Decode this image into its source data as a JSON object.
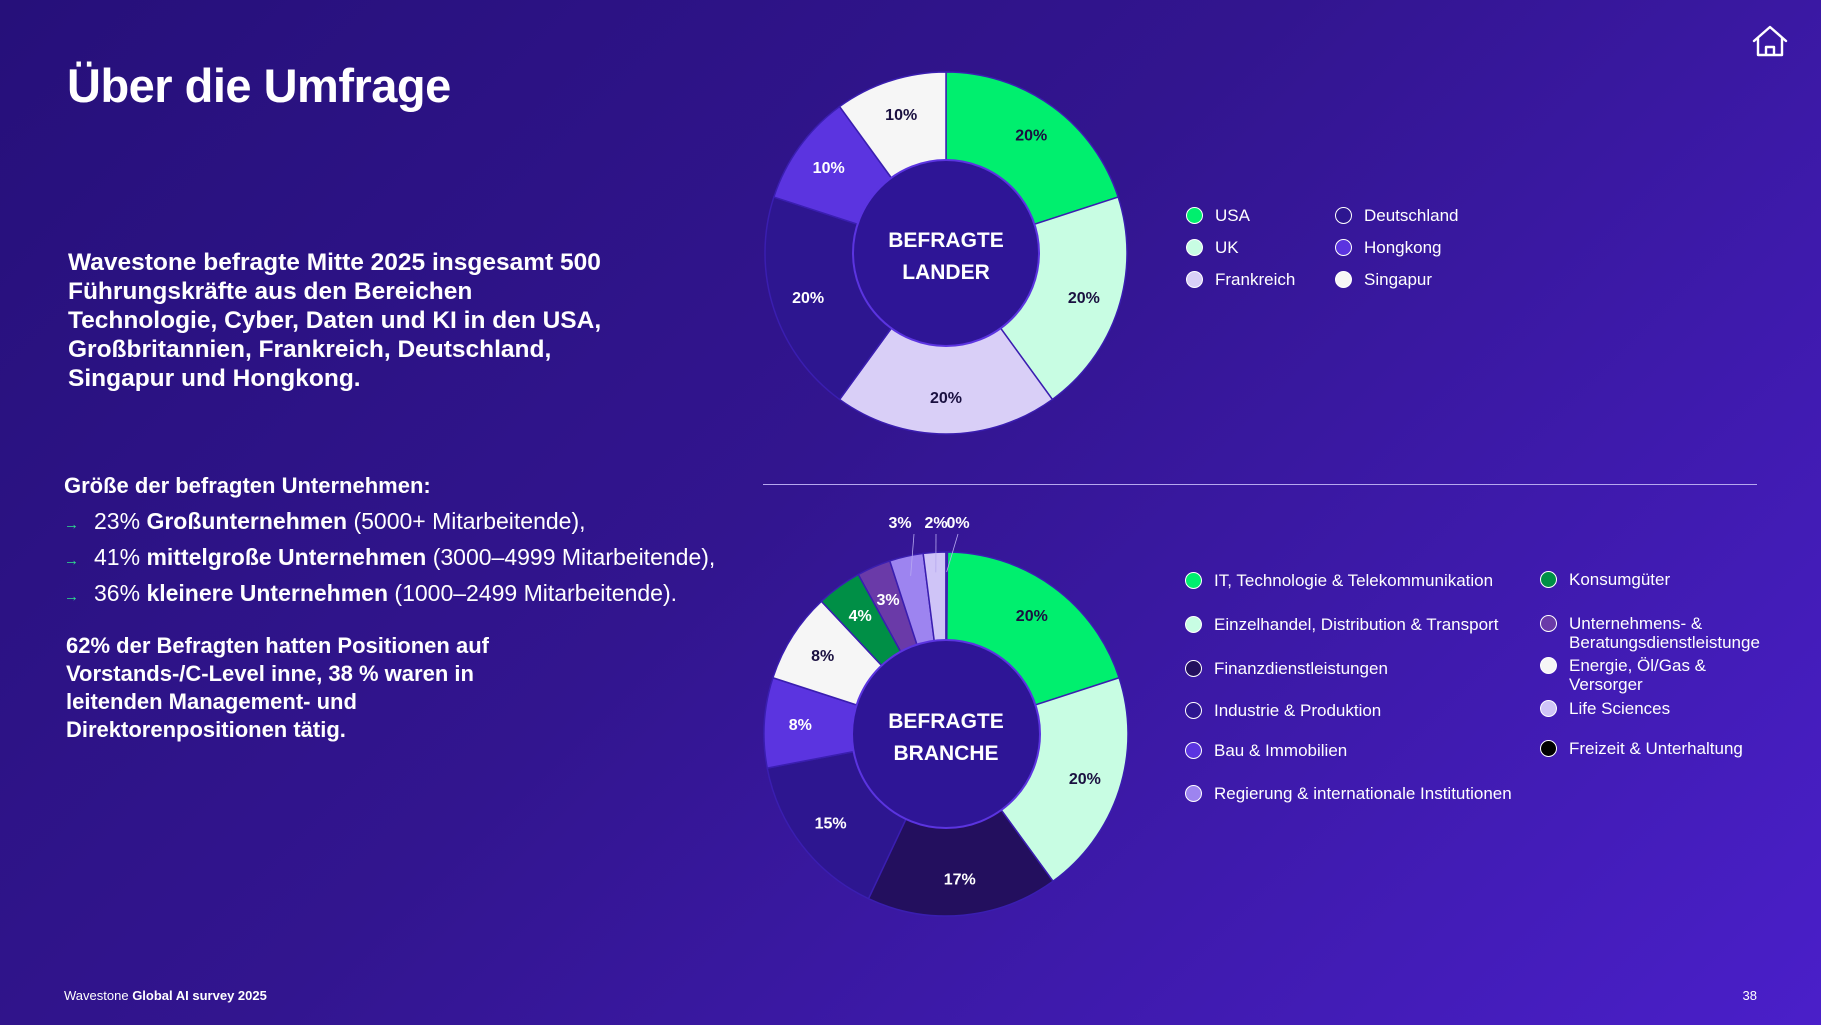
{
  "title": "Über die Umfrage",
  "intro": "Wavestone befragte Mitte 2025 insgesamt 500 Führungskräfte aus den Bereichen Technologie, Cyber, Daten und KI in den USA, Großbritannien, Frankreich, Deutschland, Singapur und Hongkong.",
  "company_size": {
    "heading": "Größe der befragten Unternehmen:",
    "items": [
      {
        "pct": "23%",
        "bold": "Großunternehmen",
        "rest": "(5000+ Mitarbeitende),"
      },
      {
        "pct": "41%",
        "bold": "mittelgroße Unternehmen",
        "rest": "(3000–4999 Mitarbeitende),"
      },
      {
        "pct": "36%",
        "bold": "kleinere Unternehmen",
        "rest": "(1000–2499 Mitarbeitende)."
      }
    ]
  },
  "positions_text": "62% der Befragten hatten Positionen auf Vorstands-/C-Level inne, 38 % waren in leitenden Management- und Direktorenpositionen tätig.",
  "footer": {
    "brand": "Wavestone",
    "survey": "Global AI survey 2025",
    "page": "38"
  },
  "home_icon": "home-icon",
  "chart_data": [
    {
      "type": "pie",
      "title": "BEFRAGTE LANDER",
      "categories": [
        "USA",
        "UK",
        "Frankreich",
        "Deutschland",
        "Hongkong",
        "Singapur"
      ],
      "values": [
        20,
        20,
        20,
        20,
        10,
        10
      ],
      "labels": [
        "20%",
        "20%",
        "20%",
        "20%",
        "10%",
        "10%"
      ],
      "colors": [
        "#00ef6e",
        "#c8fde3",
        "#d9cff7",
        "#2d1690",
        "#5b34e0",
        "#f6f6f6"
      ],
      "legend_placement": "right"
    },
    {
      "type": "pie",
      "title": "BEFRAGTE BRANCHE",
      "categories": [
        "IT, Technologie & Telekommunikation",
        "Einzelhandel, Distribution & Transport",
        "Finanzdienstleistungen",
        "Industrie & Produktion",
        "Bau & Immobilien",
        "Energie, Öl/Gas & Versorger",
        "Konsumgüter",
        "Unternehmens- & Beratungsdienstleistunge",
        "Regierung & internationale Institutionen",
        "Life Sciences",
        "Freizeit & Unterhaltung"
      ],
      "values": [
        20,
        20,
        17,
        15,
        8,
        8,
        4,
        3,
        3,
        2,
        0
      ],
      "labels": [
        "20%",
        "20%",
        "17%",
        "15%",
        "8%",
        "8%",
        "4%",
        "3%",
        "3%",
        "2%",
        "0%"
      ],
      "colors": [
        "#00ef6e",
        "#c8fde3",
        "#230f5e",
        "#2d1690",
        "#5b34e0",
        "#f6f6f6",
        "#008f46",
        "#6a3aa8",
        "#9d84f0",
        "#cfc4f7",
        "#000000"
      ],
      "legend_order": [
        0,
        1,
        2,
        3,
        4,
        8,
        6,
        7,
        5,
        9,
        10
      ],
      "legend_placement": "right"
    }
  ]
}
